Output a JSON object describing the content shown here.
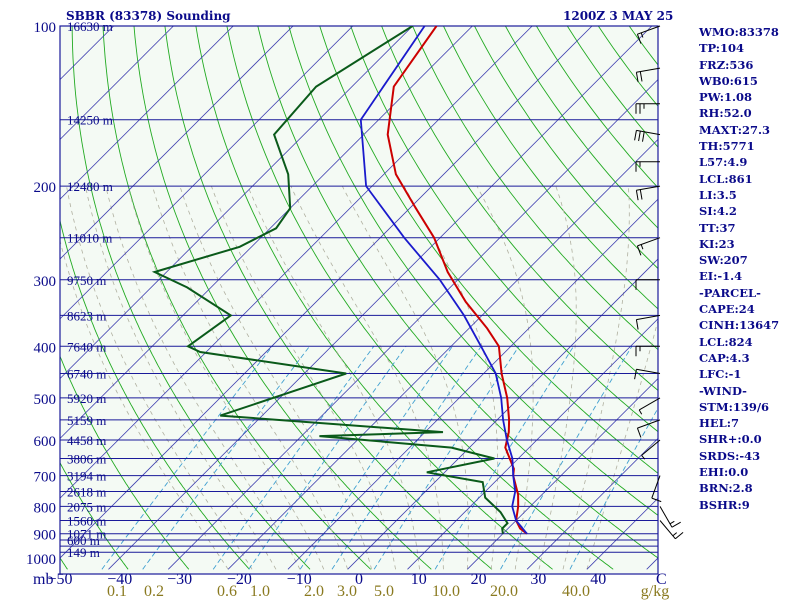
{
  "header": {
    "title": "SBBR (83378) Sounding",
    "time": "1200Z  3 MAY 25"
  },
  "indices": [
    "WMO:83378",
    "TP:104",
    "FRZ:536",
    "WB0:615",
    "PW:1.08",
    "RH:52.0",
    "MAXT:27.3",
    "TH:5771",
    "L57:4.9",
    "LCL:861",
    "LI:3.5",
    "SI:4.2",
    "TT:37",
    "KI:23",
    "SW:207",
    "EI:-1.4",
    "-PARCEL-",
    "CAPE:24",
    "CINH:13647",
    "LCL:824",
    "CAP:4.3",
    "LFC:-1",
    "-WIND-",
    "STM:139/6",
    "HEL:7",
    "SHR+:0.0",
    "SRDS:-43",
    "EHI:0.0",
    "BRN:2.8",
    "BSHR:9"
  ],
  "colors": {
    "background": "#f4faf4",
    "isobar": "#1a1a9a",
    "isotherm": "#4040b0",
    "dry_adiabat": "#22aa22",
    "moist_adiabat": "#b0b0a0",
    "mixing_ratio": "#40a0d0",
    "temperature": "#cc0000",
    "dewpoint": "#0a5a1a",
    "parcel": "#1a1acc",
    "label": "#0a0a8a",
    "mixing_label": "#8a7a20"
  },
  "chart_data": {
    "type": "line",
    "title": "SBBR (83378) Sounding",
    "subtitle": "1200Z  3 MAY 25",
    "xlabel": "C",
    "x_unit_label": "mb",
    "mixing_unit": "g/kg",
    "scale": "log-pressure (Skew-T)",
    "xlim": [
      -50,
      50
    ],
    "ylim": [
      1000,
      100
    ],
    "x_ticks": [
      -50,
      -40,
      -30,
      -20,
      -10,
      0,
      10,
      20,
      30,
      40
    ],
    "pressure_ticks": [
      100,
      200,
      300,
      400,
      500,
      600,
      700,
      800,
      900,
      1000
    ],
    "pressure_lines": [
      100,
      150,
      200,
      250,
      300,
      350,
      400,
      450,
      500,
      550,
      600,
      650,
      700,
      750,
      800,
      850,
      900,
      925,
      950,
      975
    ],
    "height_labels": [
      {
        "p": 100,
        "text": "16630 m"
      },
      {
        "p": 150,
        "text": "14250 m"
      },
      {
        "p": 200,
        "text": "12480 m"
      },
      {
        "p": 250,
        "text": "11010 m"
      },
      {
        "p": 300,
        "text": "9750 m"
      },
      {
        "p": 350,
        "text": "8623 m"
      },
      {
        "p": 400,
        "text": "7640 m"
      },
      {
        "p": 450,
        "text": "6740 m"
      },
      {
        "p": 500,
        "text": "5920 m"
      },
      {
        "p": 550,
        "text": "5159 m"
      },
      {
        "p": 600,
        "text": "4458 m"
      },
      {
        "p": 650,
        "text": "3806 m"
      },
      {
        "p": 700,
        "text": "3194 m"
      },
      {
        "p": 750,
        "text": "2618 m"
      },
      {
        "p": 800,
        "text": "2075 m"
      },
      {
        "p": 850,
        "text": "1560 m"
      },
      {
        "p": 900,
        "text": "1071 m"
      },
      {
        "p": 925,
        "text": "600 m"
      },
      {
        "p": 975,
        "text": "149 m"
      }
    ],
    "mixing_ratio_labels": [
      {
        "label": "0.1",
        "value": 0.1
      },
      {
        "label": "0.2",
        "value": 0.2
      },
      {
        "label": "0.6",
        "value": 0.6
      },
      {
        "label": "1.0",
        "value": 1.0
      },
      {
        "label": "2.0",
        "value": 2.0
      },
      {
        "label": "3.0",
        "value": 3.0
      },
      {
        "label": "5.0",
        "value": 5.0
      },
      {
        "label": "10.0",
        "value": 10.0
      },
      {
        "label": "20.0",
        "value": 20.0
      },
      {
        "label": "40.0",
        "value": 40.0
      }
    ],
    "series": [
      {
        "key": "temperature",
        "points": [
          [
            100,
            -76
          ],
          [
            130,
            -73
          ],
          [
            160,
            -66
          ],
          [
            190,
            -58
          ],
          [
            220,
            -49
          ],
          [
            250,
            -41
          ],
          [
            290,
            -33
          ],
          [
            330,
            -25
          ],
          [
            370,
            -17
          ],
          [
            400,
            -12
          ],
          [
            450,
            -7
          ],
          [
            500,
            -2
          ],
          [
            550,
            2
          ],
          [
            580,
            4
          ],
          [
            620,
            6
          ],
          [
            680,
            11
          ],
          [
            700,
            12
          ],
          [
            760,
            16
          ],
          [
            800,
            18
          ],
          [
            850,
            20
          ],
          [
            880,
            22
          ],
          [
            900,
            24
          ]
        ]
      },
      {
        "key": "dewpoint",
        "points": [
          [
            100,
            -80
          ],
          [
            130,
            -86
          ],
          [
            160,
            -85
          ],
          [
            190,
            -76
          ],
          [
            220,
            -70
          ],
          [
            240,
            -69
          ],
          [
            260,
            -72
          ],
          [
            290,
            -82
          ],
          [
            310,
            -74
          ],
          [
            350,
            -62
          ],
          [
            400,
            -64
          ],
          [
            410,
            -61
          ],
          [
            450,
            -33
          ],
          [
            540,
            -47
          ],
          [
            580,
            -7
          ],
          [
            590,
            -27
          ],
          [
            620,
            -3
          ],
          [
            650,
            6
          ],
          [
            690,
            -3
          ],
          [
            720,
            8
          ],
          [
            770,
            11
          ],
          [
            820,
            16
          ],
          [
            860,
            19
          ],
          [
            880,
            19
          ],
          [
            900,
            20
          ]
        ]
      },
      {
        "key": "parcel",
        "points": [
          [
            100,
            -78
          ],
          [
            150,
            -73
          ],
          [
            200,
            -61
          ],
          [
            250,
            -46
          ],
          [
            300,
            -33
          ],
          [
            350,
            -23
          ],
          [
            400,
            -15
          ],
          [
            450,
            -8
          ],
          [
            500,
            -3
          ],
          [
            550,
            1
          ],
          [
            600,
            5
          ],
          [
            650,
            9
          ],
          [
            700,
            12
          ],
          [
            750,
            15
          ],
          [
            800,
            17
          ],
          [
            850,
            20
          ],
          [
            900,
            24
          ]
        ]
      }
    ],
    "wind_barbs": [
      {
        "p": 100,
        "dir": 250,
        "spd": 15
      },
      {
        "p": 120,
        "dir": 260,
        "spd": 20
      },
      {
        "p": 140,
        "dir": 270,
        "spd": 25
      },
      {
        "p": 160,
        "dir": 280,
        "spd": 30
      },
      {
        "p": 180,
        "dir": 270,
        "spd": 15
      },
      {
        "p": 200,
        "dir": 260,
        "spd": 20
      },
      {
        "p": 250,
        "dir": 250,
        "spd": 15
      },
      {
        "p": 300,
        "dir": 270,
        "spd": 10
      },
      {
        "p": 350,
        "dir": 260,
        "spd": 10
      },
      {
        "p": 400,
        "dir": 270,
        "spd": 15
      },
      {
        "p": 450,
        "dir": 280,
        "spd": 10
      },
      {
        "p": 500,
        "dir": 240,
        "spd": 5
      },
      {
        "p": 550,
        "dir": 250,
        "spd": 10
      },
      {
        "p": 600,
        "dir": 230,
        "spd": 5
      },
      {
        "p": 700,
        "dir": 200,
        "spd": 10
      },
      {
        "p": 800,
        "dir": 150,
        "spd": 15
      },
      {
        "p": 850,
        "dir": 140,
        "spd": 15
      }
    ]
  }
}
